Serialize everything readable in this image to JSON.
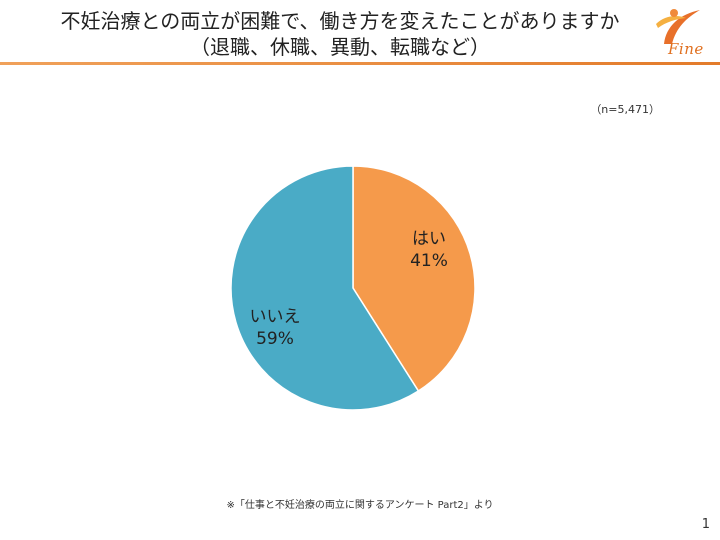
{
  "slide": {
    "title_line1": "不妊治療との両立が困難で、働き方を変えたことがありますか",
    "title_line2": "（退職、休職、異動、転職など）",
    "logo_text": "Fine",
    "sample_size": "（n=5,471）",
    "source_note": "※「仕事と不妊治療の両立に関するアンケート Part2」より",
    "page_number": "1"
  },
  "colors": {
    "accent": "#e37b2a",
    "yes_slice": "#f59a4b",
    "no_slice": "#4aabc6"
  },
  "chart_data": {
    "type": "pie",
    "title": "",
    "slices": [
      {
        "label": "はい",
        "value": 41,
        "display": "41%",
        "color": "#f59a4b"
      },
      {
        "label": "いいえ",
        "value": 59,
        "display": "59%",
        "color": "#4aabc6"
      }
    ],
    "start_angle": "12 o'clock",
    "direction": "clockwise"
  }
}
